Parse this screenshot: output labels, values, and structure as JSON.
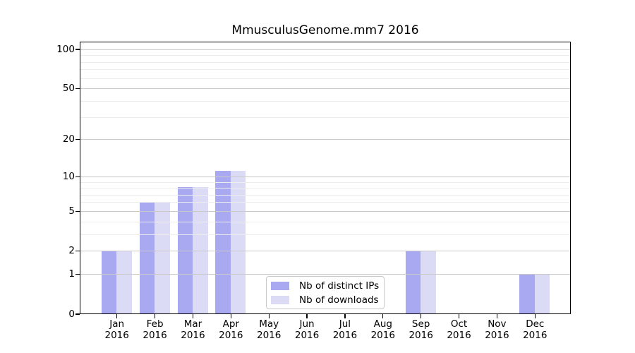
{
  "title": "MmusculusGenome.mm7 2016",
  "chart_data": {
    "type": "bar",
    "title": "MmusculusGenome.mm7 2016",
    "categories": [
      "Jan",
      "Feb",
      "Mar",
      "Apr",
      "May",
      "Jun",
      "Jul",
      "Aug",
      "Sep",
      "Oct",
      "Nov",
      "Dec"
    ],
    "category_year": "2016",
    "series": [
      {
        "name": "Nb of distinct IPs",
        "color": "#a9a9f2",
        "values": [
          2,
          6,
          8,
          11,
          0,
          0,
          0,
          0,
          2,
          0,
          0,
          1
        ]
      },
      {
        "name": "Nb of downloads",
        "color": "#dbdbf6",
        "values": [
          2,
          6,
          8,
          11,
          0,
          0,
          0,
          0,
          2,
          0,
          0,
          1
        ]
      }
    ],
    "yscale": "log1p",
    "ylim": [
      0,
      100
    ],
    "y_major_ticks": [
      0,
      1,
      2,
      5,
      10,
      20,
      50,
      100
    ],
    "y_minor_ticks": [
      3,
      4,
      6,
      7,
      8,
      9,
      30,
      40,
      60,
      70,
      80,
      90
    ],
    "grid": "horizontal",
    "legend_position": "lower-center-inside",
    "colors": {
      "major_grid": "#c9c9c9",
      "minor_grid": "#ececec",
      "frame": "#000000",
      "text": "#000000",
      "background": "#ffffff"
    }
  }
}
